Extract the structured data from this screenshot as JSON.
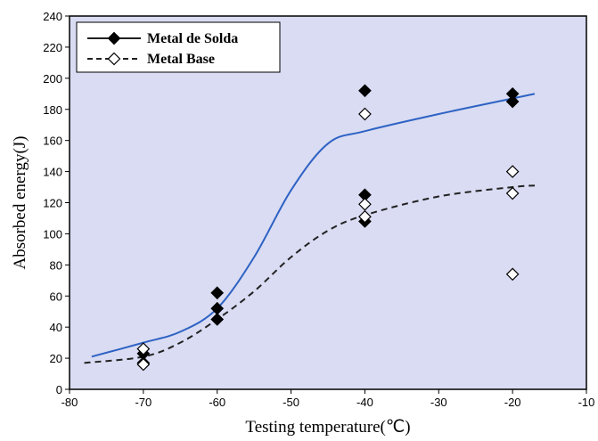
{
  "chart_data": {
    "type": "scatter",
    "title": "",
    "xlabel": "Testing temperature(℃)",
    "ylabel": "Absorbed energy(J)",
    "xlim": [
      -80,
      -10
    ],
    "ylim": [
      0,
      240
    ],
    "xticks": [
      -80,
      -70,
      -60,
      -50,
      -40,
      -30,
      -20,
      -10
    ],
    "yticks": [
      0,
      20,
      40,
      60,
      80,
      100,
      120,
      140,
      160,
      180,
      200,
      220,
      240
    ],
    "grid": false,
    "legend_position": "top-left",
    "background_color": "#d9dcf2",
    "series": [
      {
        "name": "Metal de Solda",
        "marker": "filled-diamond",
        "color": "#000000",
        "line_color": "#2e62c4",
        "line_style": "solid",
        "points": [
          [
            -70,
            23
          ],
          [
            -70,
            17
          ],
          [
            -60,
            62
          ],
          [
            -60,
            52
          ],
          [
            -60,
            45
          ],
          [
            -40,
            192
          ],
          [
            -40,
            125
          ],
          [
            -40,
            108
          ],
          [
            -20,
            190
          ],
          [
            -20,
            185
          ]
        ],
        "curve": [
          [
            -77,
            21
          ],
          [
            -70,
            30
          ],
          [
            -65,
            37
          ],
          [
            -60,
            52
          ],
          [
            -55,
            85
          ],
          [
            -50,
            128
          ],
          [
            -45,
            158
          ],
          [
            -40,
            166
          ],
          [
            -30,
            177
          ],
          [
            -20,
            187
          ],
          [
            -17,
            190
          ]
        ]
      },
      {
        "name": "Metal Base",
        "marker": "open-diamond",
        "color": "#000000",
        "line_color": "#222222",
        "line_style": "dashed",
        "points": [
          [
            -70,
            26
          ],
          [
            -70,
            16
          ],
          [
            -40,
            177
          ],
          [
            -40,
            119
          ],
          [
            -40,
            111
          ],
          [
            -20,
            140
          ],
          [
            -20,
            126
          ],
          [
            -20,
            74
          ]
        ],
        "curve": [
          [
            -78,
            17
          ],
          [
            -70,
            21
          ],
          [
            -65,
            30
          ],
          [
            -60,
            45
          ],
          [
            -55,
            63
          ],
          [
            -50,
            85
          ],
          [
            -45,
            102
          ],
          [
            -40,
            112
          ],
          [
            -30,
            124
          ],
          [
            -20,
            130
          ],
          [
            -17,
            131
          ]
        ]
      }
    ]
  }
}
